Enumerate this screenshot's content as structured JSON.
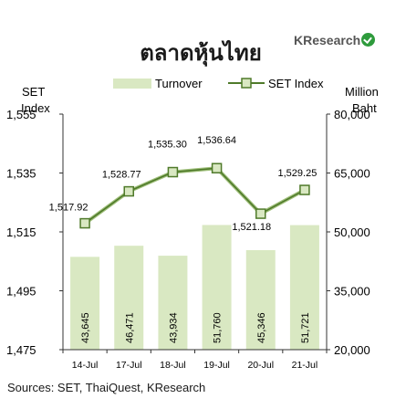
{
  "header": {
    "title": "ตลาดหุ้นไทย",
    "logo_text": "KResearch"
  },
  "footer": {
    "source": "Sources: SET, ThaiQuest, KResearch"
  },
  "colors": {
    "bar": "#d9e8c2",
    "line": "#4f7a2a",
    "marker_fill": "#d9e8c2",
    "axis": "#333333",
    "logo_mark": "#2e9b3c"
  },
  "chart_data": {
    "type": "bar+line",
    "categories": [
      "14-Jul",
      "17-Jul",
      "18-Jul",
      "19-Jul",
      "20-Jul",
      "21-Jul"
    ],
    "series": [
      {
        "name": "Turnover",
        "type": "bar",
        "axis": "right",
        "values": [
          43645,
          46471,
          43934,
          51760,
          45346,
          51721
        ],
        "labels": [
          "43,645",
          "46,471",
          "43,934",
          "51,760",
          "45,346",
          "51,721"
        ]
      },
      {
        "name": "SET Index",
        "type": "line",
        "axis": "left",
        "values": [
          1517.92,
          1528.77,
          1535.3,
          1536.64,
          1521.18,
          1529.25
        ],
        "labels": [
          "1,517.92",
          "1,528.77",
          "1,535.30",
          "1,536.64",
          "1,521.18",
          "1,529.25"
        ]
      }
    ],
    "left_axis": {
      "label_line1": "SET",
      "label_line2": "Index",
      "range": [
        1475,
        1555
      ],
      "ticks": [
        1555,
        1535,
        1515,
        1495,
        1475
      ],
      "tick_labels": [
        "1,555",
        "1,535",
        "1,515",
        "1,495",
        "1,475"
      ]
    },
    "right_axis": {
      "label_line1": "Million",
      "label_line2": "Baht",
      "range": [
        20000,
        80000
      ],
      "ticks": [
        80000,
        65000,
        50000,
        35000,
        20000
      ],
      "tick_labels": [
        "80,000",
        "65,000",
        "50,000",
        "35,000",
        "20,000"
      ]
    },
    "legend_position": "top",
    "grid": false
  }
}
